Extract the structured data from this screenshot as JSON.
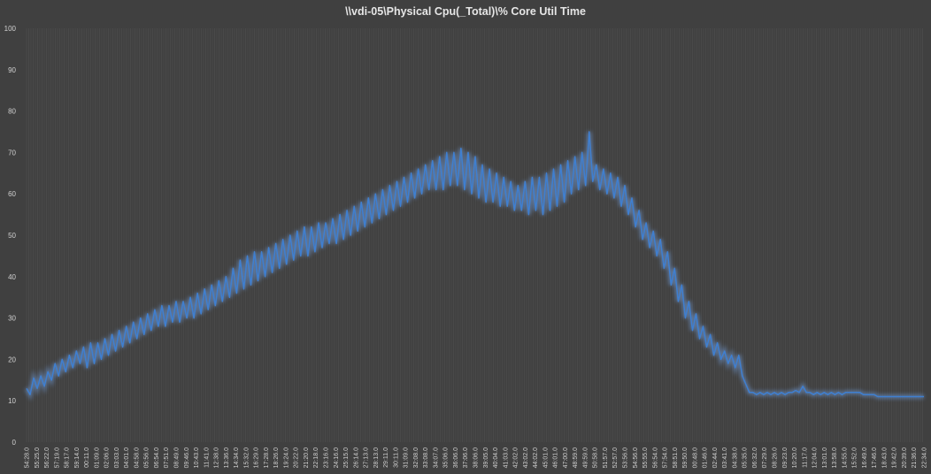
{
  "chart_data": {
    "type": "line",
    "title": "\\\\vdi-05\\Physical Cpu(_Total)\\% Core Util Time",
    "xlabel": "",
    "ylabel": "",
    "ylim": [
      0,
      100
    ],
    "yticks": [
      0,
      10,
      20,
      30,
      40,
      50,
      60,
      70,
      80,
      90,
      100
    ],
    "grid": "vertical",
    "legend": "none",
    "colors": {
      "background": "#404040",
      "line": "#3f7fd0",
      "glow": "#6f9ad6",
      "grid": "#5a5a5a",
      "text": "#d0d0d0"
    },
    "x_tick_labels": [
      "54:28.0",
      "55:25.0",
      "56:22.0",
      "57:19.0",
      "58:17.0",
      "59:14.0",
      "00:11.0",
      "01:09.0",
      "02:06.0",
      "03:03.0",
      "04:01.0",
      "04:58.0",
      "05:56.0",
      "06:54.0",
      "07:51.0",
      "08:49.0",
      "09:46.0",
      "10:43.0",
      "11:41.0",
      "12:38.0",
      "13:36.0",
      "14:34.0",
      "15:32.0",
      "16:29.0",
      "17:28.0",
      "18:26.0",
      "19:24.0",
      "20:22.0",
      "21:20.0",
      "22:18.0",
      "23:16.0",
      "24:16.0",
      "25:15.0",
      "26:14.0",
      "27:13.0",
      "28:13.0",
      "29:11.0",
      "30:11.0",
      "31:09.0",
      "32:08.0",
      "33:08.0",
      "34:07.0",
      "35:06.0",
      "36:06.0",
      "37:06.0",
      "38:06.0",
      "39:05.0",
      "40:04.0",
      "41:03.0",
      "42:02.0",
      "43:02.0",
      "44:02.0",
      "45:01.0",
      "46:01.0",
      "47:00.0",
      "48:59.0",
      "49:59.0",
      "50:58.0",
      "51:57.0",
      "52:57.0",
      "53:56.0",
      "54:56.0",
      "55:55.0",
      "56:54.0",
      "57:54.0",
      "58:51.0",
      "59:50.0",
      "00:48.0",
      "01:46.0",
      "02:44.0",
      "03:41.0",
      "04:38.0",
      "05:35.0",
      "06:32.0",
      "07:29.0",
      "08:26.0",
      "09:23.0",
      "10:20.0",
      "11:17.0",
      "12:04.0",
      "13:01.0",
      "13:58.0",
      "14:55.0",
      "15:52.0",
      "16:49.0",
      "17:46.0",
      "18:43.0",
      "19:42.0",
      "20:39.0",
      "21:36.0",
      "22:34.0"
    ],
    "series": [
      {
        "values": [
          13,
          11.5,
          15.5,
          13,
          16,
          13.5,
          17,
          15,
          19,
          16,
          20,
          17,
          21,
          18,
          22,
          19,
          23,
          18,
          24,
          19,
          24,
          20,
          25,
          21,
          26,
          22,
          27,
          23,
          28,
          24,
          29,
          25,
          30,
          26,
          31,
          27,
          32,
          28,
          33,
          28,
          33,
          29,
          34,
          29,
          34,
          30,
          35,
          30,
          36,
          31,
          37,
          32,
          38,
          33,
          39,
          34,
          40,
          35,
          42,
          36,
          44,
          37,
          45,
          38,
          46,
          39,
          46,
          40,
          47,
          41,
          48,
          42,
          49,
          43,
          50,
          44,
          51,
          45,
          52,
          45,
          52,
          46,
          53,
          47,
          53,
          48,
          54,
          48,
          55,
          49,
          56,
          50,
          57,
          51,
          58,
          52,
          59,
          53,
          60,
          54,
          61,
          55,
          62,
          56,
          63,
          57,
          64,
          58,
          65,
          59,
          66,
          60,
          67,
          61,
          68,
          61,
          69,
          61,
          70,
          62,
          70,
          62,
          71,
          61,
          70,
          60,
          69,
          59,
          67,
          58,
          66,
          58,
          65,
          57,
          64,
          57,
          63,
          56,
          62,
          56,
          63,
          55,
          64,
          56,
          64,
          55,
          65,
          56,
          66,
          57,
          67,
          58,
          68,
          60,
          69,
          61,
          70,
          62,
          75,
          63,
          67,
          61,
          66,
          60,
          65,
          59,
          64,
          57,
          62,
          55,
          59,
          52,
          56,
          49,
          53,
          47,
          51,
          45,
          49,
          42,
          46,
          38,
          42,
          34,
          38,
          30,
          34,
          27,
          31,
          25,
          28,
          23,
          26,
          21,
          24,
          20,
          22,
          19,
          21,
          18,
          21,
          16,
          14,
          12,
          12,
          11.5,
          12,
          11.5,
          12,
          11.5,
          12,
          11.5,
          12,
          11.5,
          12,
          12,
          12.5,
          12,
          13.5,
          12,
          12,
          11.5,
          12,
          11.5,
          12,
          11.5,
          12,
          11.5,
          12,
          11.5,
          12,
          12,
          12,
          12,
          12,
          11.5,
          11.5,
          11.5,
          11.5,
          11,
          11,
          11,
          11,
          11,
          11,
          11,
          11,
          11,
          11,
          11,
          11,
          11,
          11
        ]
      }
    ]
  }
}
